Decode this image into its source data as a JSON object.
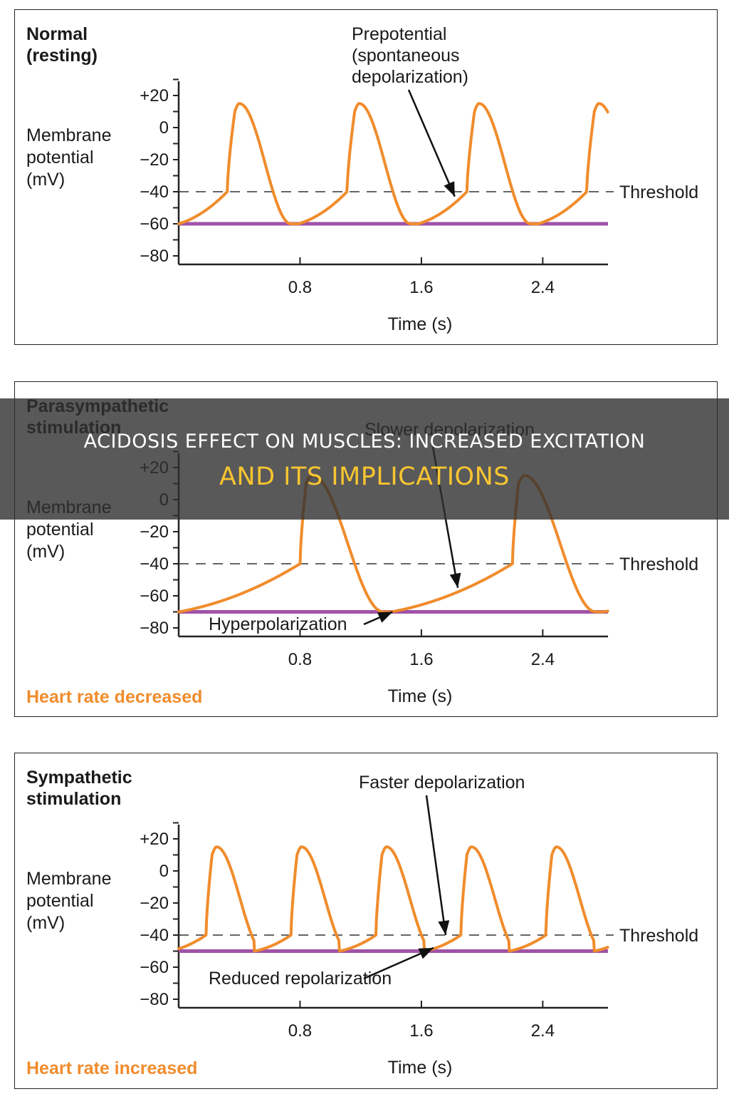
{
  "colors": {
    "trace": "#f08c2c",
    "baseline": "#a052a8",
    "footer": "#f08c2c",
    "axis": "#222222"
  },
  "overlay": {
    "line1": "Acidosis Effect on Muscles: Increased Excitation",
    "line2": "and Its Implications"
  },
  "chart_data": [
    {
      "type": "line",
      "title": "Normal (resting)",
      "title_lines": [
        "Normal",
        "(resting)"
      ],
      "ylabel_lines": [
        "Membrane",
        "potential",
        "(mV)"
      ],
      "xlabel": "Time (s)",
      "yticks": [
        "+20",
        "0",
        "−20",
        "−40",
        "−60",
        "−80"
      ],
      "ytick_values": [
        20,
        0,
        -20,
        -40,
        -60,
        -80
      ],
      "xticks": [
        "0.8",
        "1.6",
        "2.4"
      ],
      "xtick_values": [
        0.8,
        1.6,
        2.4
      ],
      "xlim": [
        0,
        2.83
      ],
      "ylim": [
        -92,
        30
      ],
      "threshold": {
        "label": "Threshold",
        "value": -40
      },
      "baseline": -60,
      "annotations": [
        {
          "lines": [
            "Prepotential",
            "(spontaneous",
            "depolarization)"
          ],
          "pointer_at": [
            1.82,
            -43
          ]
        }
      ],
      "footer": "",
      "cycle": {
        "period": 0.79,
        "start": 0.0,
        "threshold_time": 0.32,
        "upstroke_time": 0.05,
        "peak_time": 0.08,
        "decline_time": 0.34,
        "peak_mV": 15,
        "min_mV": -60
      },
      "series": [
        {
          "x": [
            0.0,
            0.32,
            0.37,
            0.45,
            0.79,
            1.11,
            1.16,
            1.24,
            1.58,
            1.9,
            1.95,
            2.03,
            2.37,
            2.69,
            2.74,
            2.83
          ],
          "y": [
            -60,
            -40,
            10,
            15,
            -60,
            -40,
            10,
            15,
            -60,
            -40,
            10,
            15,
            -60,
            -40,
            10,
            8
          ]
        }
      ]
    },
    {
      "type": "line",
      "title": "Parasympathetic stimulation",
      "title_lines": [
        "Parasympathetic",
        "stimulation"
      ],
      "ylabel_lines": [
        "Membrane",
        "potential",
        "(mV)"
      ],
      "xlabel": "Time (s)",
      "yticks": [
        "+20",
        "0",
        "−20",
        "−40",
        "−60",
        "−80"
      ],
      "ytick_values": [
        20,
        0,
        -20,
        -40,
        -60,
        -80
      ],
      "xticks": [
        "0.8",
        "1.6",
        "2.4"
      ],
      "xtick_values": [
        0.8,
        1.6,
        2.4
      ],
      "xlim": [
        0,
        2.83
      ],
      "ylim": [
        -92,
        30
      ],
      "threshold": {
        "label": "Threshold",
        "value": -40
      },
      "baseline": -70,
      "annotations": [
        {
          "lines": [
            "Slower depolarization"
          ],
          "pointer_at": [
            1.84,
            -55
          ]
        },
        {
          "lines": [
            "Hyperpolarization"
          ],
          "pointer_at": [
            1.41,
            -70
          ]
        }
      ],
      "footer": "Heart rate decreased",
      "cycle": {
        "period": 1.4,
        "start": 0.0,
        "threshold_time": 0.8,
        "upstroke_time": 0.04,
        "peak_time": 0.08,
        "decline_time": 0.47,
        "peak_mV": 15,
        "min_mV": -70
      },
      "series": [
        {
          "x": [
            0.0,
            0.8,
            0.84,
            0.92,
            1.39,
            1.4,
            2.2,
            2.24,
            2.32,
            2.79,
            2.83
          ],
          "y": [
            -70,
            -40,
            10,
            15,
            -70,
            -70,
            -40,
            10,
            15,
            -70,
            -70
          ]
        }
      ]
    },
    {
      "type": "line",
      "title": "Sympathetic stimulation",
      "title_lines": [
        "Sympathetic",
        "stimulation"
      ],
      "ylabel_lines": [
        "Membrane",
        "potential",
        "(mV)"
      ],
      "xlabel": "Time (s)",
      "yticks": [
        "+20",
        "0",
        "−20",
        "−40",
        "−60",
        "−80"
      ],
      "ytick_values": [
        20,
        0,
        -20,
        -40,
        -60,
        -80
      ],
      "xticks": [
        "0.8",
        "1.6",
        "2.4"
      ],
      "xtick_values": [
        0.8,
        1.6,
        2.4
      ],
      "xlim": [
        0,
        2.83
      ],
      "ylim": [
        -92,
        30
      ],
      "threshold": {
        "label": "Threshold",
        "value": -40
      },
      "baseline": -50,
      "annotations": [
        {
          "lines": [
            "Faster depolarization"
          ],
          "pointer_at": [
            1.76,
            -40
          ]
        },
        {
          "lines": [
            "Reduced repolarization"
          ],
          "pointer_at": [
            1.68,
            -48
          ]
        }
      ],
      "footer": "Heart rate increased",
      "cycle": {
        "period": 0.56,
        "start": -0.06,
        "threshold_time": 0.24,
        "upstroke_time": 0.04,
        "peak_time": 0.07,
        "decline_time": 0.31,
        "peak_mV": 15,
        "min_mV": -50
      },
      "series": [
        {
          "x": [
            0.0,
            0.18,
            0.22,
            0.29,
            0.56,
            0.74,
            0.78,
            0.85,
            1.12,
            1.3,
            1.34,
            1.41,
            1.68,
            1.86,
            1.9,
            1.97,
            2.24,
            2.42,
            2.46,
            2.53,
            2.8,
            2.83
          ],
          "y": [
            -50,
            -40,
            10,
            15,
            -50,
            -40,
            10,
            15,
            -50,
            -40,
            10,
            15,
            -50,
            -40,
            10,
            15,
            -50,
            -40,
            10,
            15,
            -50,
            -50
          ]
        }
      ]
    }
  ]
}
